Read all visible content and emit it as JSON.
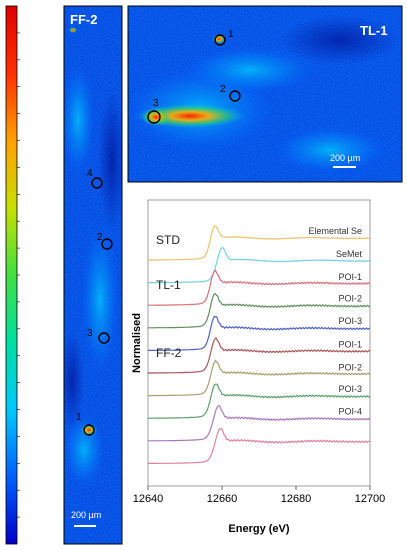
{
  "panels": {
    "ff2": {
      "title": "FF-2",
      "scale_bar": "200 µm",
      "poi_labels": [
        "4",
        "2",
        "3",
        "1"
      ]
    },
    "tl1": {
      "title": "TL-1",
      "scale_bar": "200 µm",
      "poi_labels": [
        "1",
        "2",
        "3"
      ]
    }
  },
  "colorbar": {
    "gradient": [
      "#0000c8",
      "#0060ff",
      "#00c8ff",
      "#00e0a0",
      "#40e040",
      "#c8e000",
      "#ffa000",
      "#ff3000",
      "#e00000"
    ]
  },
  "chart_data": {
    "type": "line",
    "xlabel": "Energy (eV)",
    "ylabel": "Normalised",
    "xlim": [
      12640,
      12700
    ],
    "x_ticks": [
      "12640",
      "12660",
      "12680",
      "12700"
    ],
    "groups": [
      {
        "label": "STD",
        "series_index": 0
      },
      {
        "label": "TL-1",
        "series_index": 2
      },
      {
        "label": "FF-2",
        "series_index": 5
      }
    ],
    "series": [
      {
        "name": "Elemental Se",
        "color": "#e8c46a",
        "edge": 12656.5,
        "peak": 12658.0
      },
      {
        "name": "SeMet",
        "color": "#6fd2de",
        "edge": 12658.0,
        "peak": 12660.0
      },
      {
        "name": "POI-1",
        "color": "#d9707a",
        "edge": 12656.5,
        "peak": 12658.0
      },
      {
        "name": "POI-2",
        "color": "#5f8f5a",
        "edge": 12656.5,
        "peak": 12658.0
      },
      {
        "name": "POI-3",
        "color": "#4d63c8",
        "edge": 12656.5,
        "peak": 12658.0
      },
      {
        "name": "POI-1",
        "color": "#a8555a",
        "edge": 12656.5,
        "peak": 12658.2
      },
      {
        "name": "POI-2",
        "color": "#a8a070",
        "edge": 12656.5,
        "peak": 12658.2
      },
      {
        "name": "POI-3",
        "color": "#5fa06a",
        "edge": 12656.5,
        "peak": 12658.2
      },
      {
        "name": "POI-4",
        "color": "#a878b8",
        "edge": 12657.0,
        "peak": 12659.0
      },
      {
        "name": "",
        "color": "#e080a0",
        "edge": 12657.5,
        "peak": 12659.5
      }
    ]
  }
}
